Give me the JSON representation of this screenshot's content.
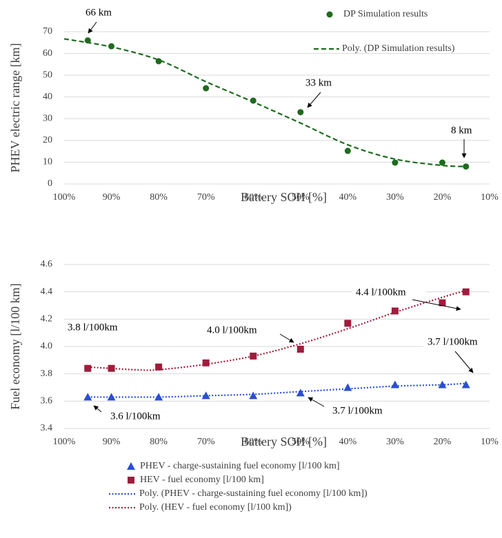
{
  "chart_data": [
    {
      "type": "scatter",
      "x_label": "Battery SOH [%]",
      "y_label": "PHEV electric range [km]",
      "xlim": [
        100,
        10
      ],
      "ylim": [
        0,
        70
      ],
      "xticks": [
        {
          "value": 100,
          "label": "100%"
        },
        {
          "value": 90,
          "label": "90%"
        },
        {
          "value": 80,
          "label": "80%"
        },
        {
          "value": 70,
          "label": "70%"
        },
        {
          "value": 60,
          "label": "60%"
        },
        {
          "value": 50,
          "label": "50%"
        },
        {
          "value": 40,
          "label": "40%"
        },
        {
          "value": 30,
          "label": "30%"
        },
        {
          "value": 20,
          "label": "20%"
        },
        {
          "value": 10,
          "label": "10%"
        }
      ],
      "yticks": [
        0,
        10,
        20,
        30,
        40,
        50,
        60,
        70
      ],
      "grid": true,
      "series": [
        {
          "name": "DP Simulation results",
          "color": "#1e6b1e",
          "style": "circle",
          "x": [
            95,
            90,
            80,
            70,
            60,
            50,
            40,
            30,
            20,
            15
          ],
          "values": [
            66,
            63.3,
            56.4,
            44,
            38.3,
            33,
            15.2,
            9.8,
            9.8,
            8
          ]
        },
        {
          "name": "Poly. (DP Simulation results)",
          "color": "#1e6b1e",
          "style": "dashed",
          "x": [
            100,
            90,
            80,
            70,
            60,
            50,
            40,
            30,
            20,
            15
          ],
          "values": [
            66.7,
            63,
            57,
            47,
            37.7,
            28,
            18,
            11.4,
            8.5,
            8
          ]
        }
      ],
      "annotations": [
        "66 km",
        "33 km",
        "8 km"
      ]
    },
    {
      "type": "scatter",
      "x_label": "Battery SOH [%]",
      "y_label": "Fuel economy [l/100 km]",
      "xlim": [
        100,
        10
      ],
      "ylim": [
        3.4,
        4.6
      ],
      "xticks": [
        {
          "value": 100,
          "label": "100%"
        },
        {
          "value": 90,
          "label": "90%"
        },
        {
          "value": 80,
          "label": "80%"
        },
        {
          "value": 70,
          "label": "70%"
        },
        {
          "value": 60,
          "label": "60%"
        },
        {
          "value": 50,
          "label": "50%"
        },
        {
          "value": 40,
          "label": "40%"
        },
        {
          "value": 30,
          "label": "30%"
        },
        {
          "value": 20,
          "label": "20%"
        },
        {
          "value": 10,
          "label": "10%"
        }
      ],
      "yticks": [
        3.4,
        3.6,
        3.8,
        {
          "value": 4,
          "label": "4.0"
        },
        4.2,
        4.4,
        4.6
      ],
      "grid": true,
      "series": [
        {
          "name": "PHEV - charge-sustaining fuel economy [l/100 km]",
          "color": "#2a4fcf",
          "style": "triangle",
          "x": [
            95,
            90,
            80,
            70,
            60,
            50,
            40,
            30,
            20,
            15
          ],
          "values": [
            3.63,
            3.63,
            3.63,
            3.64,
            3.64,
            3.66,
            3.7,
            3.72,
            3.72,
            3.72
          ]
        },
        {
          "name": "HEV - fuel economy [l/100 km]",
          "color": "#a01c3c",
          "style": "square",
          "x": [
            95,
            90,
            80,
            70,
            60,
            50,
            40,
            30,
            20,
            15
          ],
          "values": [
            3.84,
            3.84,
            3.85,
            3.88,
            3.93,
            3.98,
            4.17,
            4.26,
            4.32,
            4.4
          ]
        },
        {
          "name": "Poly. (PHEV - charge-sustaining fuel economy [l/100 km])",
          "color": "#2a4fcf",
          "style": "dotted",
          "x": [
            95,
            80,
            70,
            60,
            50,
            40,
            30,
            20,
            15
          ],
          "values": [
            3.63,
            3.63,
            3.64,
            3.65,
            3.67,
            3.69,
            3.71,
            3.72,
            3.73
          ]
        },
        {
          "name": "Poly. (HEV - fuel economy [l/100 km])",
          "color": "#a01c3c",
          "style": "dotted",
          "x": [
            95,
            85,
            80,
            70,
            60,
            50,
            40,
            30,
            20,
            15
          ],
          "values": [
            3.85,
            3.83,
            3.83,
            3.87,
            3.93,
            4.02,
            4.13,
            4.25,
            4.36,
            4.41
          ]
        }
      ],
      "annotations": [
        "4.4 l/100km",
        "3.8 l/100km",
        "4.0 l/100km",
        "3.7 l/100km",
        "3.7 l/100km",
        "3.6 l/100km"
      ]
    }
  ]
}
